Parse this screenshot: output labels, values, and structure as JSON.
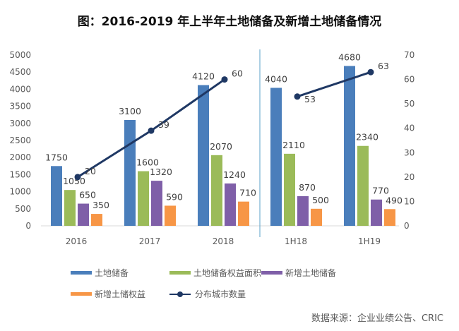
{
  "title": "图：2016-2019 年上半年土地储备及新增土地储备情况",
  "source": "数据来源：企业业绩公告、CRIC",
  "chart_data": {
    "type": "bar",
    "categories": [
      "2016",
      "2017",
      "2018",
      "1H18",
      "1H19"
    ],
    "series": [
      {
        "name": "土地储备",
        "values": [
          1750,
          3100,
          4120,
          4040,
          4680
        ],
        "color": "#4a7ebb"
      },
      {
        "name": "土地储备权益面积",
        "values": [
          1050,
          1600,
          2070,
          2110,
          2340
        ],
        "color": "#9bbb59"
      },
      {
        "name": "新增土地储备",
        "values": [
          650,
          1320,
          1240,
          870,
          770
        ],
        "color": "#7f5fa8"
      },
      {
        "name": "新增土储权益",
        "values": [
          350,
          590,
          710,
          500,
          490
        ],
        "color": "#f79646"
      },
      {
        "name": "分布城市数量",
        "type": "line",
        "axis": "right",
        "values": [
          20,
          39,
          60,
          53,
          63
        ],
        "color": "#1f3864"
      }
    ],
    "ylim": [
      0,
      5000
    ],
    "yticks": [
      0,
      500,
      1000,
      1500,
      2000,
      2500,
      3000,
      3500,
      4000,
      4500,
      5000
    ],
    "y2lim": [
      0,
      70
    ],
    "y2ticks": [
      0,
      10,
      20,
      30,
      40,
      50,
      60,
      70
    ],
    "grid": false,
    "legend": "bottom"
  }
}
